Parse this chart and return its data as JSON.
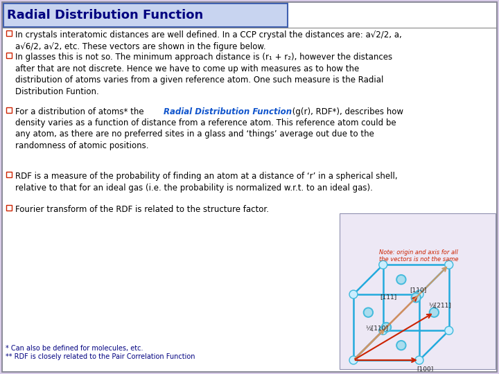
{
  "title": "Radial Distribution Function",
  "title_color": "#000080",
  "title_bg": "#c8d4f0",
  "title_border": "#4060b0",
  "bg_color": "#d8cce8",
  "content_bg": "#ffffff",
  "text_color": "#000000",
  "bullet_color": "#cc2200",
  "bullet1": "In crystals interatomic distances are well defined. In a CCP crystal the distances are: a√2/2, a,\na√6/2, a√2, etc. These vectors are shown in the figure below.",
  "bullet2": "In glasses this is not so. The minimum approach distance is (r₁ + r₂), however the distances\nafter that are not discrete. Hence we have to come up with measures as to how the\ndistribution of atoms varies from a given reference atom. One such measure is the Radial\nDistribution Funtion.",
  "bullet3_pre": "For a distribution of atoms* the ",
  "bullet3_link": "Radial Distribution Function",
  "bullet3_after": " (g(r), RDF*), describes how\ndensity varies as a function of distance from a reference atom. This reference atom could be\nany atom, as there are no preferred sites in a glass and ‘things’ average out due to the\nrandomness of atomic positions.",
  "bullet4": "RDF is a measure of the probability of finding an atom at a distance of ‘r’ in a spherical shell,\nrelative to that for an ideal gas (i.e. the probability is normalized w.r.t. to an ideal gas).",
  "bullet5": "Fourier transform of the RDF is related to the structure factor.",
  "footnote1": "* Can also be defined for molecules, etc.",
  "footnote2": "** RDF is closely related to the Pair Correlation Function",
  "footnote_color": "#000080",
  "link_color": "#1155cc",
  "cube_edge_color": "#22aadd",
  "atom_outer": "#44bbdd",
  "atom_inner": "#aaddee",
  "red_color": "#cc2200",
  "tan_color": "#cc9966",
  "note_color": "#cc2200"
}
